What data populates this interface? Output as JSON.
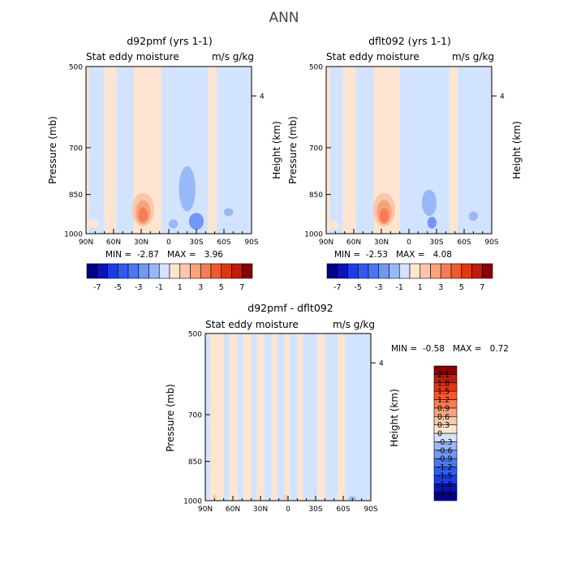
{
  "page": {
    "title": "ANN"
  },
  "colors": {
    "c_neg_8": "#00008b",
    "c_neg_7": "#0a14b8",
    "c_neg_6": "#1e3ce6",
    "c_neg_5": "#2e5cf2",
    "c_neg_4": "#4878f5",
    "c_neg_3": "#6f98f8",
    "c_neg_2": "#99b8f9",
    "c_neg_1": "#d2e3fd",
    "c_pos_1": "#fde5d1",
    "c_pos_2": "#fbc7a6",
    "c_pos_3": "#f9a27c",
    "c_pos_4": "#f67c52",
    "c_pos_5": "#f25a2c",
    "c_pos_6": "#e23512",
    "c_pos_7": "#c01c06",
    "c_pos_8": "#8b0000"
  },
  "chart_data": [
    {
      "type": "heatmap",
      "title": "d92pmf (yrs 1-1)",
      "subtitle_left": "Stat eddy moisture",
      "subtitle_right": "m/s g/kg",
      "ylabel": "Pressure (mb)",
      "ylabel_right": "Height (km)",
      "x_ticks": [
        "90N",
        "60N",
        "30N",
        "0",
        "30S",
        "60S",
        "90S"
      ],
      "y_ticks": [
        "500",
        "700",
        "850",
        "1000"
      ],
      "y_tick_values": [
        500,
        700,
        850,
        1000
      ],
      "right_ticks": [
        "4"
      ],
      "right_tick_values": [
        4
      ],
      "ylim": [
        500,
        1000
      ],
      "min_max": "MIN =  -2.87   MAX =   3.96",
      "colorbar_labels": [
        "-7",
        "-5",
        "-3",
        "-1",
        "1",
        "3",
        "5",
        "7"
      ],
      "colorbar_label_values": [
        -7,
        -5,
        -3,
        -1,
        1,
        3,
        5,
        7
      ],
      "colorbar_edges": [
        -8,
        -7,
        -6,
        -5,
        -4,
        -3,
        -2,
        -1,
        0,
        1,
        2,
        3,
        4,
        5,
        6,
        7,
        8
      ],
      "bands": [
        {
          "lat0": 90,
          "lat1": 87,
          "level": 1
        },
        {
          "lat0": 87,
          "lat1": 70,
          "level": -1
        },
        {
          "lat0": 70,
          "lat1": 57,
          "level": 1
        },
        {
          "lat0": 57,
          "lat1": 38,
          "level": -1
        },
        {
          "lat0": 38,
          "lat1": 8,
          "level": 1
        },
        {
          "lat0": 8,
          "lat1": -43,
          "level": -1
        },
        {
          "lat0": -43,
          "lat1": -52,
          "level": 1
        },
        {
          "lat0": -52,
          "lat1": -90,
          "level": -1
        }
      ],
      "blobs": [
        {
          "lat": 28,
          "p": 905,
          "dlat": 12,
          "dp": 120,
          "level": 2
        },
        {
          "lat": 28,
          "p": 915,
          "dlat": 8,
          "dp": 85,
          "level": 3
        },
        {
          "lat": 28,
          "p": 925,
          "dlat": 5,
          "dp": 50,
          "level": 4
        },
        {
          "lat": -20,
          "p": 830,
          "dlat": 9,
          "dp": 150,
          "level": -2
        },
        {
          "lat": -30,
          "p": 950,
          "dlat": 8,
          "dp": 60,
          "level": -3
        },
        {
          "lat": -5,
          "p": 960,
          "dlat": 5,
          "dp": 30,
          "level": -2
        },
        {
          "lat": -65,
          "p": 915,
          "dlat": 5,
          "dp": 25,
          "level": -2
        },
        {
          "lat": 82,
          "p": 960,
          "dlat": 6,
          "dp": 30,
          "level": 1
        }
      ]
    },
    {
      "type": "heatmap",
      "title": "dflt092 (yrs 1-1)",
      "subtitle_left": "Stat eddy moisture",
      "subtitle_right": "m/s g/kg",
      "ylabel": "Pressure (mb)",
      "ylabel_right": "Height (km)",
      "x_ticks": [
        "90N",
        "60N",
        "30N",
        "0",
        "30S",
        "60S",
        "90S"
      ],
      "y_ticks": [
        "500",
        "700",
        "850",
        "1000"
      ],
      "y_tick_values": [
        500,
        700,
        850,
        1000
      ],
      "right_ticks": [
        "4"
      ],
      "right_tick_values": [
        4
      ],
      "ylim": [
        500,
        1000
      ],
      "min_max": "MIN =  -2.53   MAX =   4.08",
      "colorbar_labels": [
        "-7",
        "-5",
        "-3",
        "-1",
        "1",
        "3",
        "5",
        "7"
      ],
      "colorbar_label_values": [
        -7,
        -5,
        -3,
        -1,
        1,
        3,
        5,
        7
      ],
      "colorbar_edges": [
        -8,
        -7,
        -6,
        -5,
        -4,
        -3,
        -2,
        -1,
        0,
        1,
        2,
        3,
        4,
        5,
        6,
        7,
        8
      ],
      "bands": [
        {
          "lat0": 90,
          "lat1": 86,
          "level": 1
        },
        {
          "lat0": 86,
          "lat1": 72,
          "level": -1
        },
        {
          "lat0": 72,
          "lat1": 58,
          "level": 1
        },
        {
          "lat0": 58,
          "lat1": 38,
          "level": -1
        },
        {
          "lat0": 38,
          "lat1": 10,
          "level": 1
        },
        {
          "lat0": 10,
          "lat1": -44,
          "level": -1
        },
        {
          "lat0": -44,
          "lat1": -53,
          "level": 1
        },
        {
          "lat0": -53,
          "lat1": -90,
          "level": -1
        }
      ],
      "blobs": [
        {
          "lat": 27,
          "p": 905,
          "dlat": 12,
          "dp": 120,
          "level": 2
        },
        {
          "lat": 27,
          "p": 915,
          "dlat": 8,
          "dp": 85,
          "level": 3
        },
        {
          "lat": 27,
          "p": 928,
          "dlat": 5,
          "dp": 50,
          "level": 4
        },
        {
          "lat": -22,
          "p": 880,
          "dlat": 8,
          "dp": 90,
          "level": -2
        },
        {
          "lat": -25,
          "p": 955,
          "dlat": 5,
          "dp": 40,
          "level": -3
        },
        {
          "lat": -70,
          "p": 930,
          "dlat": 5,
          "dp": 30,
          "level": -2
        },
        {
          "lat": 82,
          "p": 965,
          "dlat": 6,
          "dp": 30,
          "level": 1
        }
      ]
    },
    {
      "type": "heatmap",
      "title": "d92pmf - dflt092",
      "subtitle_left": "Stat eddy moisture",
      "subtitle_right": "m/s g/kg",
      "ylabel": "Pressure (mb)",
      "ylabel_right": "Height (km)",
      "x_ticks": [
        "90N",
        "60N",
        "30N",
        "0",
        "30S",
        "60S",
        "90S"
      ],
      "y_ticks": [
        "500",
        "700",
        "850",
        "1000"
      ],
      "y_tick_values": [
        500,
        700,
        850,
        1000
      ],
      "right_ticks": [
        "4"
      ],
      "right_tick_values": [
        4
      ],
      "ylim": [
        500,
        1000
      ],
      "min_max": "MIN =  -0.58   MAX =   0.72",
      "colorbar_labels": [
        "2.1",
        "1.8",
        "1.5",
        "1.2",
        "0.9",
        "0.6",
        "0.3",
        "0",
        "-0.3",
        "-0.6",
        "-0.9",
        "-1.2",
        "-1.5",
        "-1.8",
        "-2.1"
      ],
      "colorbar_label_values": [
        2.1,
        1.8,
        1.5,
        1.2,
        0.9,
        0.6,
        0.3,
        0,
        -0.3,
        -0.6,
        -0.9,
        -1.2,
        -1.5,
        -1.8,
        -2.1
      ],
      "colorbar_edges": [
        -2.4,
        -2.1,
        -1.8,
        -1.5,
        -1.2,
        -0.9,
        -0.6,
        -0.3,
        0,
        0.3,
        0.6,
        0.9,
        1.2,
        1.5,
        1.8,
        2.1,
        2.4
      ],
      "bands": [
        {
          "lat0": 90,
          "lat1": 85,
          "level": -1
        },
        {
          "lat0": 85,
          "lat1": 70,
          "level": 1
        },
        {
          "lat0": 70,
          "lat1": 64,
          "level": -1
        },
        {
          "lat0": 64,
          "lat1": 55,
          "level": 1
        },
        {
          "lat0": 55,
          "lat1": 49,
          "level": -1
        },
        {
          "lat0": 49,
          "lat1": 40,
          "level": 1
        },
        {
          "lat0": 40,
          "lat1": 34,
          "level": -1
        },
        {
          "lat0": 34,
          "lat1": 26,
          "level": 1
        },
        {
          "lat0": 26,
          "lat1": 18,
          "level": -1
        },
        {
          "lat0": 18,
          "lat1": 12,
          "level": 1
        },
        {
          "lat0": 12,
          "lat1": 4,
          "level": -1
        },
        {
          "lat0": 4,
          "lat1": -2,
          "level": 1
        },
        {
          "lat0": -2,
          "lat1": -10,
          "level": -1
        },
        {
          "lat0": -10,
          "lat1": -16,
          "level": 1
        },
        {
          "lat0": -16,
          "lat1": -32,
          "level": -1
        },
        {
          "lat0": -32,
          "lat1": -40,
          "level": 1
        },
        {
          "lat0": -40,
          "lat1": -54,
          "level": -1
        },
        {
          "lat0": -54,
          "lat1": -62,
          "level": 1
        },
        {
          "lat0": -62,
          "lat1": -90,
          "level": -1
        }
      ],
      "blobs": [
        {
          "lat": 2,
          "p": 985,
          "dlat": 2,
          "dp": 15,
          "level": 2
        },
        {
          "lat": 80,
          "p": 985,
          "dlat": 2,
          "dp": 12,
          "level": 2
        },
        {
          "lat": -70,
          "p": 990,
          "dlat": 4,
          "dp": 10,
          "level": -2
        }
      ]
    }
  ]
}
